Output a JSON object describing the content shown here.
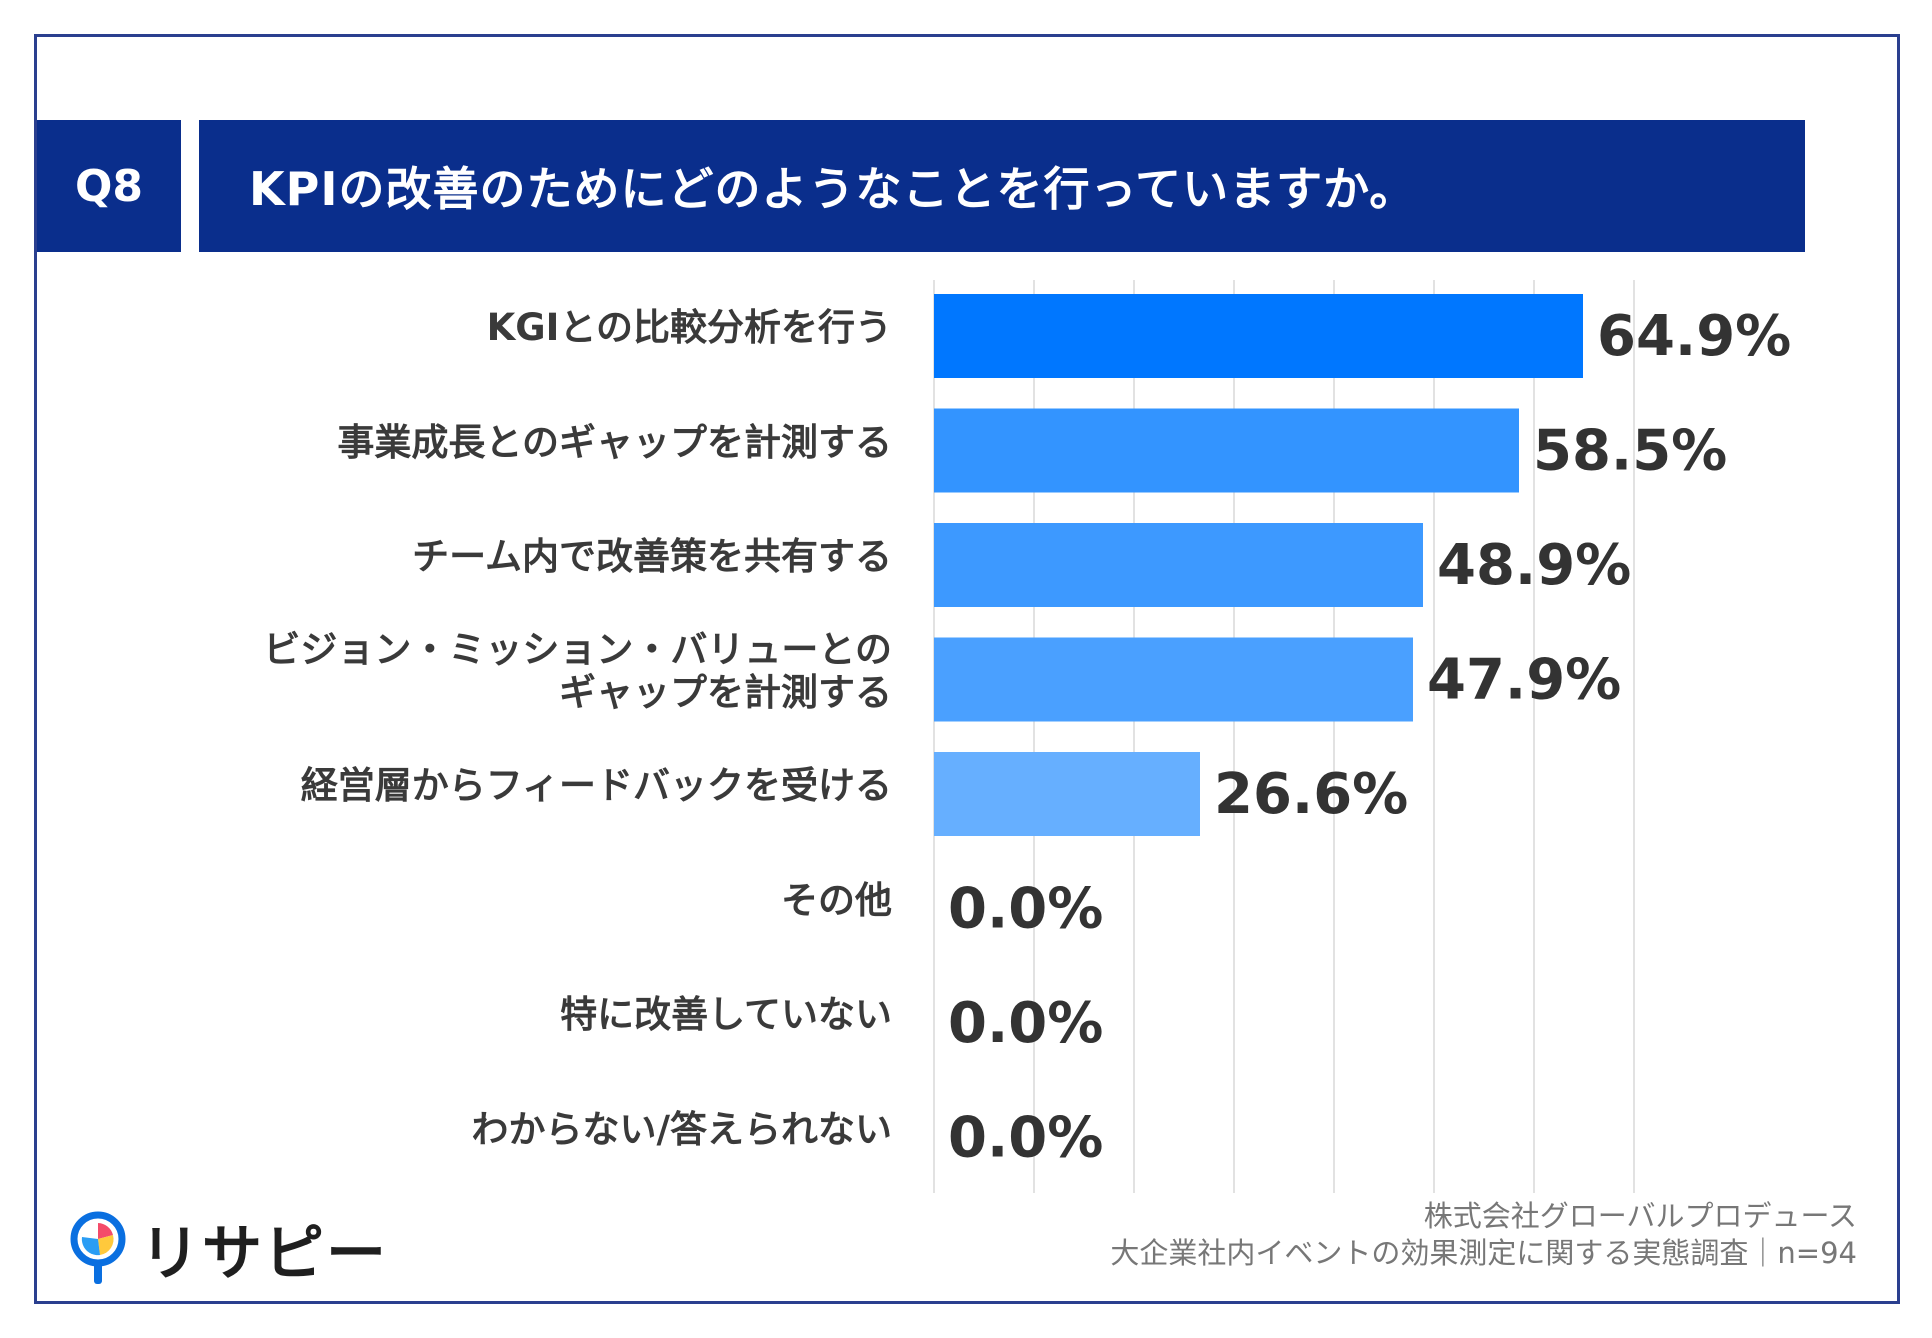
{
  "question": {
    "number": "Q8",
    "title": "KPIの改善のためにどのようなことを行っていますか。"
  },
  "chart_data": {
    "type": "bar",
    "orientation": "horizontal",
    "title": "KPIの改善のためにどのようなことを行っていますか。",
    "categories": [
      [
        "KGIとの比較分析を行う"
      ],
      [
        "事業成長とのギャップを計測する"
      ],
      [
        "チーム内で改善策を共有する"
      ],
      [
        "ビジョン・ミッション・バリューとの",
        "ギャップを計測する"
      ],
      [
        "経営層からフィードバックを受ける"
      ],
      [
        "その他"
      ],
      [
        "特に改善していない"
      ],
      [
        "わからない/答えられない"
      ]
    ],
    "values": [
      64.9,
      58.5,
      48.9,
      47.9,
      26.6,
      0.0,
      0.0,
      0.0
    ],
    "value_labels": [
      "64.9%",
      "58.5%",
      "48.9%",
      "47.9%",
      "26.6%",
      "0.0%",
      "0.0%",
      "0.0%"
    ],
    "bar_colors": [
      "#0077ff",
      "#3394ff",
      "#3d99ff",
      "#4aa0ff",
      "#66afff",
      "#66afff",
      "#66afff",
      "#66afff"
    ],
    "xlim": [
      0,
      70
    ],
    "grid": true,
    "grid_step": 10,
    "xlabel": "",
    "ylabel": ""
  },
  "footer": {
    "company": "株式会社グローバルプロデュース",
    "survey": "大企業社内イベントの効果測定に関する実態調査｜n=94"
  },
  "logo": {
    "text": "リサピー"
  },
  "colors": {
    "header_bg": "#0a2e8c",
    "frame": "#2a3f8f",
    "grid": "#d9d9d9",
    "value_text": "#333333"
  }
}
